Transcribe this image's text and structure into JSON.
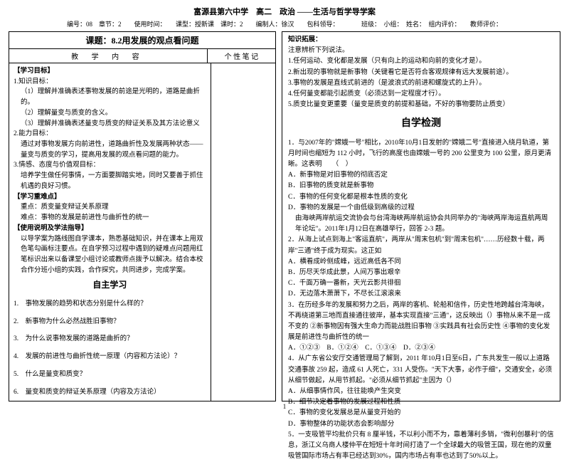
{
  "header": {
    "title": "富源县第六中学　高二　政治 ——生活与哲学导学案",
    "meta": "编号：08　章节：2　　使用时间：　　课型：授新课　课时：2　　编制人：徐汉　　包科领导：　　　　班级：　小组：　姓名：　组内评价：　　教师评价："
  },
  "lesson": {
    "title": "课题：8.2用发展的观点看问题",
    "col1": "教 学 内 容",
    "col2": "个 性 笔 记"
  },
  "left": {
    "goals_h": "【学习目标】",
    "k_h": "1.知识目标：",
    "k1": "（1）理解并准确表述事物发展的前途是光明的，道路是曲折的。",
    "k2": "（2）理解量变与质变的含义。",
    "k3": "（3）理解并准确表述量变与质变的辩证关系及其方法论意义",
    "a_h": "2.能力目标：",
    "a1": "通过对事物发展方向前进性，道路曲折性及发展两种状态——量变与质变的学习，提高用发展的观点看问题的能力。",
    "v_h": "3.情感、态度与价值观目标：",
    "v1": "培养学生做任何事情，一方面要脚踏实地，同时又要善于抓住机遇的良好习惯。",
    "focus_h": "【学习重难点】",
    "focus1": "重点：质变量变辩证关系原理",
    "focus2": "难点：事物的发展是前进性与曲折性的统一",
    "use_h": "【使用说明及学法指导】",
    "use1": "以导学案为路线图自学课本，熟悉基础知识，并在课本上用双色笔勾画标注要点。在自学预习过程中遇到的疑难点问题用红笔标识出来以备课堂小组讨论或教师点拨予以解决。结合本校合作分班小组的实践，合作探究，共同进步，完成学案。",
    "self_h": "自主学习",
    "q1": "1.　事物发展的趋势和状态分别是什么样的？",
    "q2": "2.　新事物为什么必然战胜旧事物？",
    "q3": "3.　为什么说事物发展的道路是曲折的？",
    "q4": "4.　发展的前进性与曲折性统一原理（内容和方法论）？",
    "q5": "5.　什么是量变和质变？",
    "q6": "6.　量变和质变的辩证关系原理（内容及方法论）"
  },
  "right": {
    "ext_h": "知识拓展：",
    "ext0": "注意辨析下列说法。",
    "ext1": "1.任何运动、变化都是发展（只有向上的运动和向前的变化才是）。",
    "ext2": "2.新出现的事物就是新事物（关键看它是否符合客观规律有远大发展前途）。",
    "ext3": "3.事物的发展是直线式前进的（是波浪式的前进和螺旋式的上升）。",
    "ext4": "4.任何量变都能引起质变（必须达到一定程度才行）。",
    "ext5": "5.质变比量变更重要（量变是质变的前提和基础，不好的事物要防止质变）",
    "test_h": "自学检测",
    "t1a": "1．与2007年的\"嫦娥一号\"相比，2010年10月1日发射的\"嫦娥二号\"直接进入绕月轨道，第月时间也缩短为 112 小时，飞行的高度也由嫦娥一号的 200 公里变为 100 公里，原月更清晰。这表明　　（　）",
    "t1A": "A．新事物是对旧事物的彻底否定",
    "t1B": "B．旧事物的质变就是新事物",
    "t1C": "C．事物的任何变化都是根本性质的变化",
    "t1D": "D．事物的发展是一个由低级到高级的过程",
    "t2a": "由海峡两岸航运交流协会与台湾海峡两岸航运协会共同举办的\"海峡两岸海运直航两周年论坛\"。2011年1月12日在高雄举行，回答 2-3 题。",
    "t2b": "2．从海上试点到海上\"客运直航\"，两岸从\"周末包机\"到\"周末包机\"……历经数十载，两岸\"三通\"终于成为现实。这正如",
    "t2A": "A．横看成岭侧成峰，远近高低各不同",
    "t2B": "B．历尽天华成此景，人间万事出艰辛",
    "t2C": "C．千面万确一番新，天光云影共徘徊",
    "t2D": "D．无边落木萧萧下，不尽长江滚滚来",
    "t3a": "3．在历经多年的发展和努力之后，两岸的客机、轮船和信件，历史性地跨越台湾海峡，不再绕道第三地而直接通往彼岸，基本实现直接\"三通\"，这反映出（）事物从来不是一成不变的 ②新事物因有强大生命力而能战胜旧事物 ③实践具有社会历史性 ④事物的变化发展是前进性与曲折性的统一",
    "t3A": "A．①②③　B．①②④　C．①③④　D．②③④",
    "t4a": "4．从广东省公安厅交通管理局了解到，2011 年10月1日至6日，广东共发生一般以上道路交通事故 259 起，造成 61 人死亡，331 人受伤。\"天下大事，必作于细\"，交通安全，必须从细节做起，从用节抓起。\"必须从细节抓起\"主因为（）",
    "t4A": "A．从细事情作风，往往能唤产生突变",
    "t4B": "B．细节决定着事物的发展过程和性质",
    "t4C": "C．事物的变化发展总是从量变开始的",
    "t4D": "D．事物整体的功能状态会影响部分",
    "t5a": "5．一支吸管平均批价只有 8 厘半钱，不以利小而不为，靠着薄利多销，\"微利创暴利\"的信息，浙江义乌商人楼仲平在短短十年时间打造了一个全球最大的吸管王国，现在他的双童吸管国际市场占有率已经达到30%，国内市场占有率也达到了50%以上。"
  },
  "pageNum": "1"
}
